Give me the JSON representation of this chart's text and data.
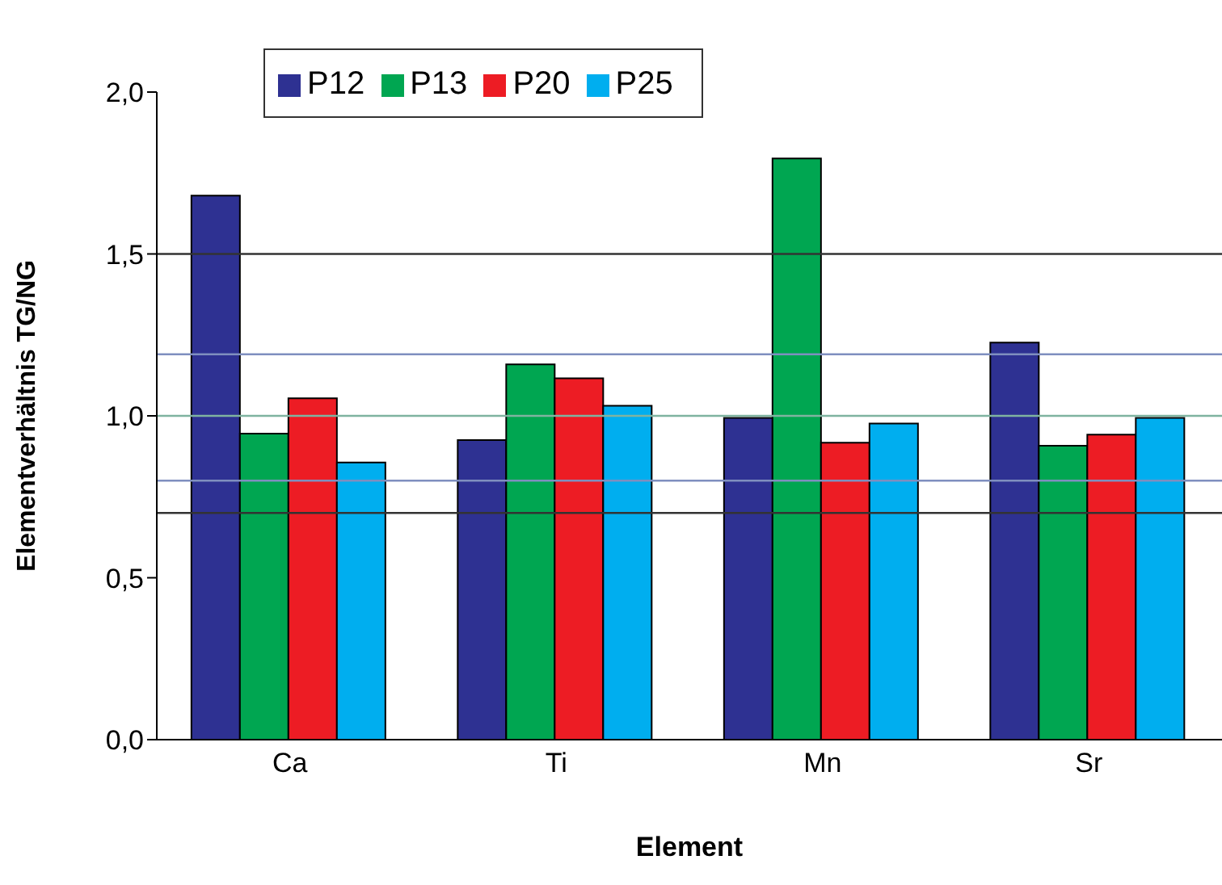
{
  "chart_data": {
    "type": "bar",
    "xlabel": "Element",
    "ylabel": "Elementverhältnis TG/NG",
    "categories": [
      "Ca",
      "Ti",
      "Mn",
      "Sr"
    ],
    "series": [
      {
        "name": "P12",
        "color": "#2e3192",
        "values": [
          1.68,
          0.925,
          0.994,
          1.226
        ]
      },
      {
        "name": "P13",
        "color": "#00a651",
        "values": [
          0.945,
          1.159,
          1.795,
          0.908
        ]
      },
      {
        "name": "P20",
        "color": "#ed1c24",
        "values": [
          1.054,
          1.116,
          0.917,
          0.942
        ]
      },
      {
        "name": "P25",
        "color": "#00aeef",
        "values": [
          0.856,
          1.031,
          0.976,
          0.994
        ]
      }
    ],
    "ylim": [
      0,
      2
    ],
    "yticks": [
      {
        "value": 0,
        "label": "0,0"
      },
      {
        "value": 0.5,
        "label": "0,5"
      },
      {
        "value": 1,
        "label": "1,0"
      },
      {
        "value": 1.5,
        "label": "1,5"
      },
      {
        "value": 2,
        "label": "2,0"
      }
    ],
    "ref_lines": [
      {
        "axis": "y",
        "value": 1.5,
        "color": "#333333"
      },
      {
        "axis": "y",
        "value": 1.19,
        "color": "#7f8fbf"
      },
      {
        "axis": "y",
        "value": 1.0,
        "color": "#7fb3a0"
      },
      {
        "axis": "y",
        "value": 0.8,
        "color": "#7f8fbf"
      },
      {
        "axis": "y",
        "value": 0.7,
        "color": "#333333"
      }
    ],
    "grid": false,
    "legend": "top"
  }
}
